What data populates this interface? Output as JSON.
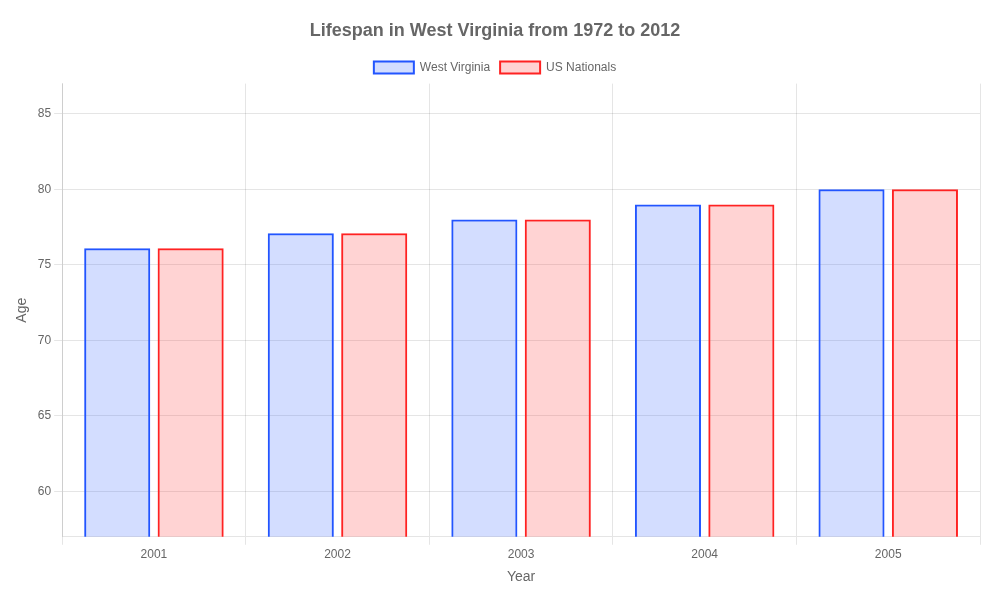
{
  "chart_data": {
    "type": "bar",
    "title": "Lifespan in West Virginia from 1972 to 2012",
    "xlabel": "Year",
    "ylabel": "Age",
    "categories": [
      "2001",
      "2002",
      "2003",
      "2004",
      "2005"
    ],
    "series": [
      {
        "name": "West Virginia",
        "color": "#2255ff",
        "values": [
          76.1,
          77.1,
          78.0,
          79.0,
          80.0
        ]
      },
      {
        "name": "US Nationals",
        "color": "#ff2222",
        "values": [
          76.1,
          77.1,
          78.0,
          79.0,
          80.0
        ]
      }
    ],
    "ylim": [
      57,
      87
    ],
    "yticks": [
      60,
      65,
      70,
      75,
      80,
      85
    ],
    "grid": true,
    "legend": "top"
  }
}
